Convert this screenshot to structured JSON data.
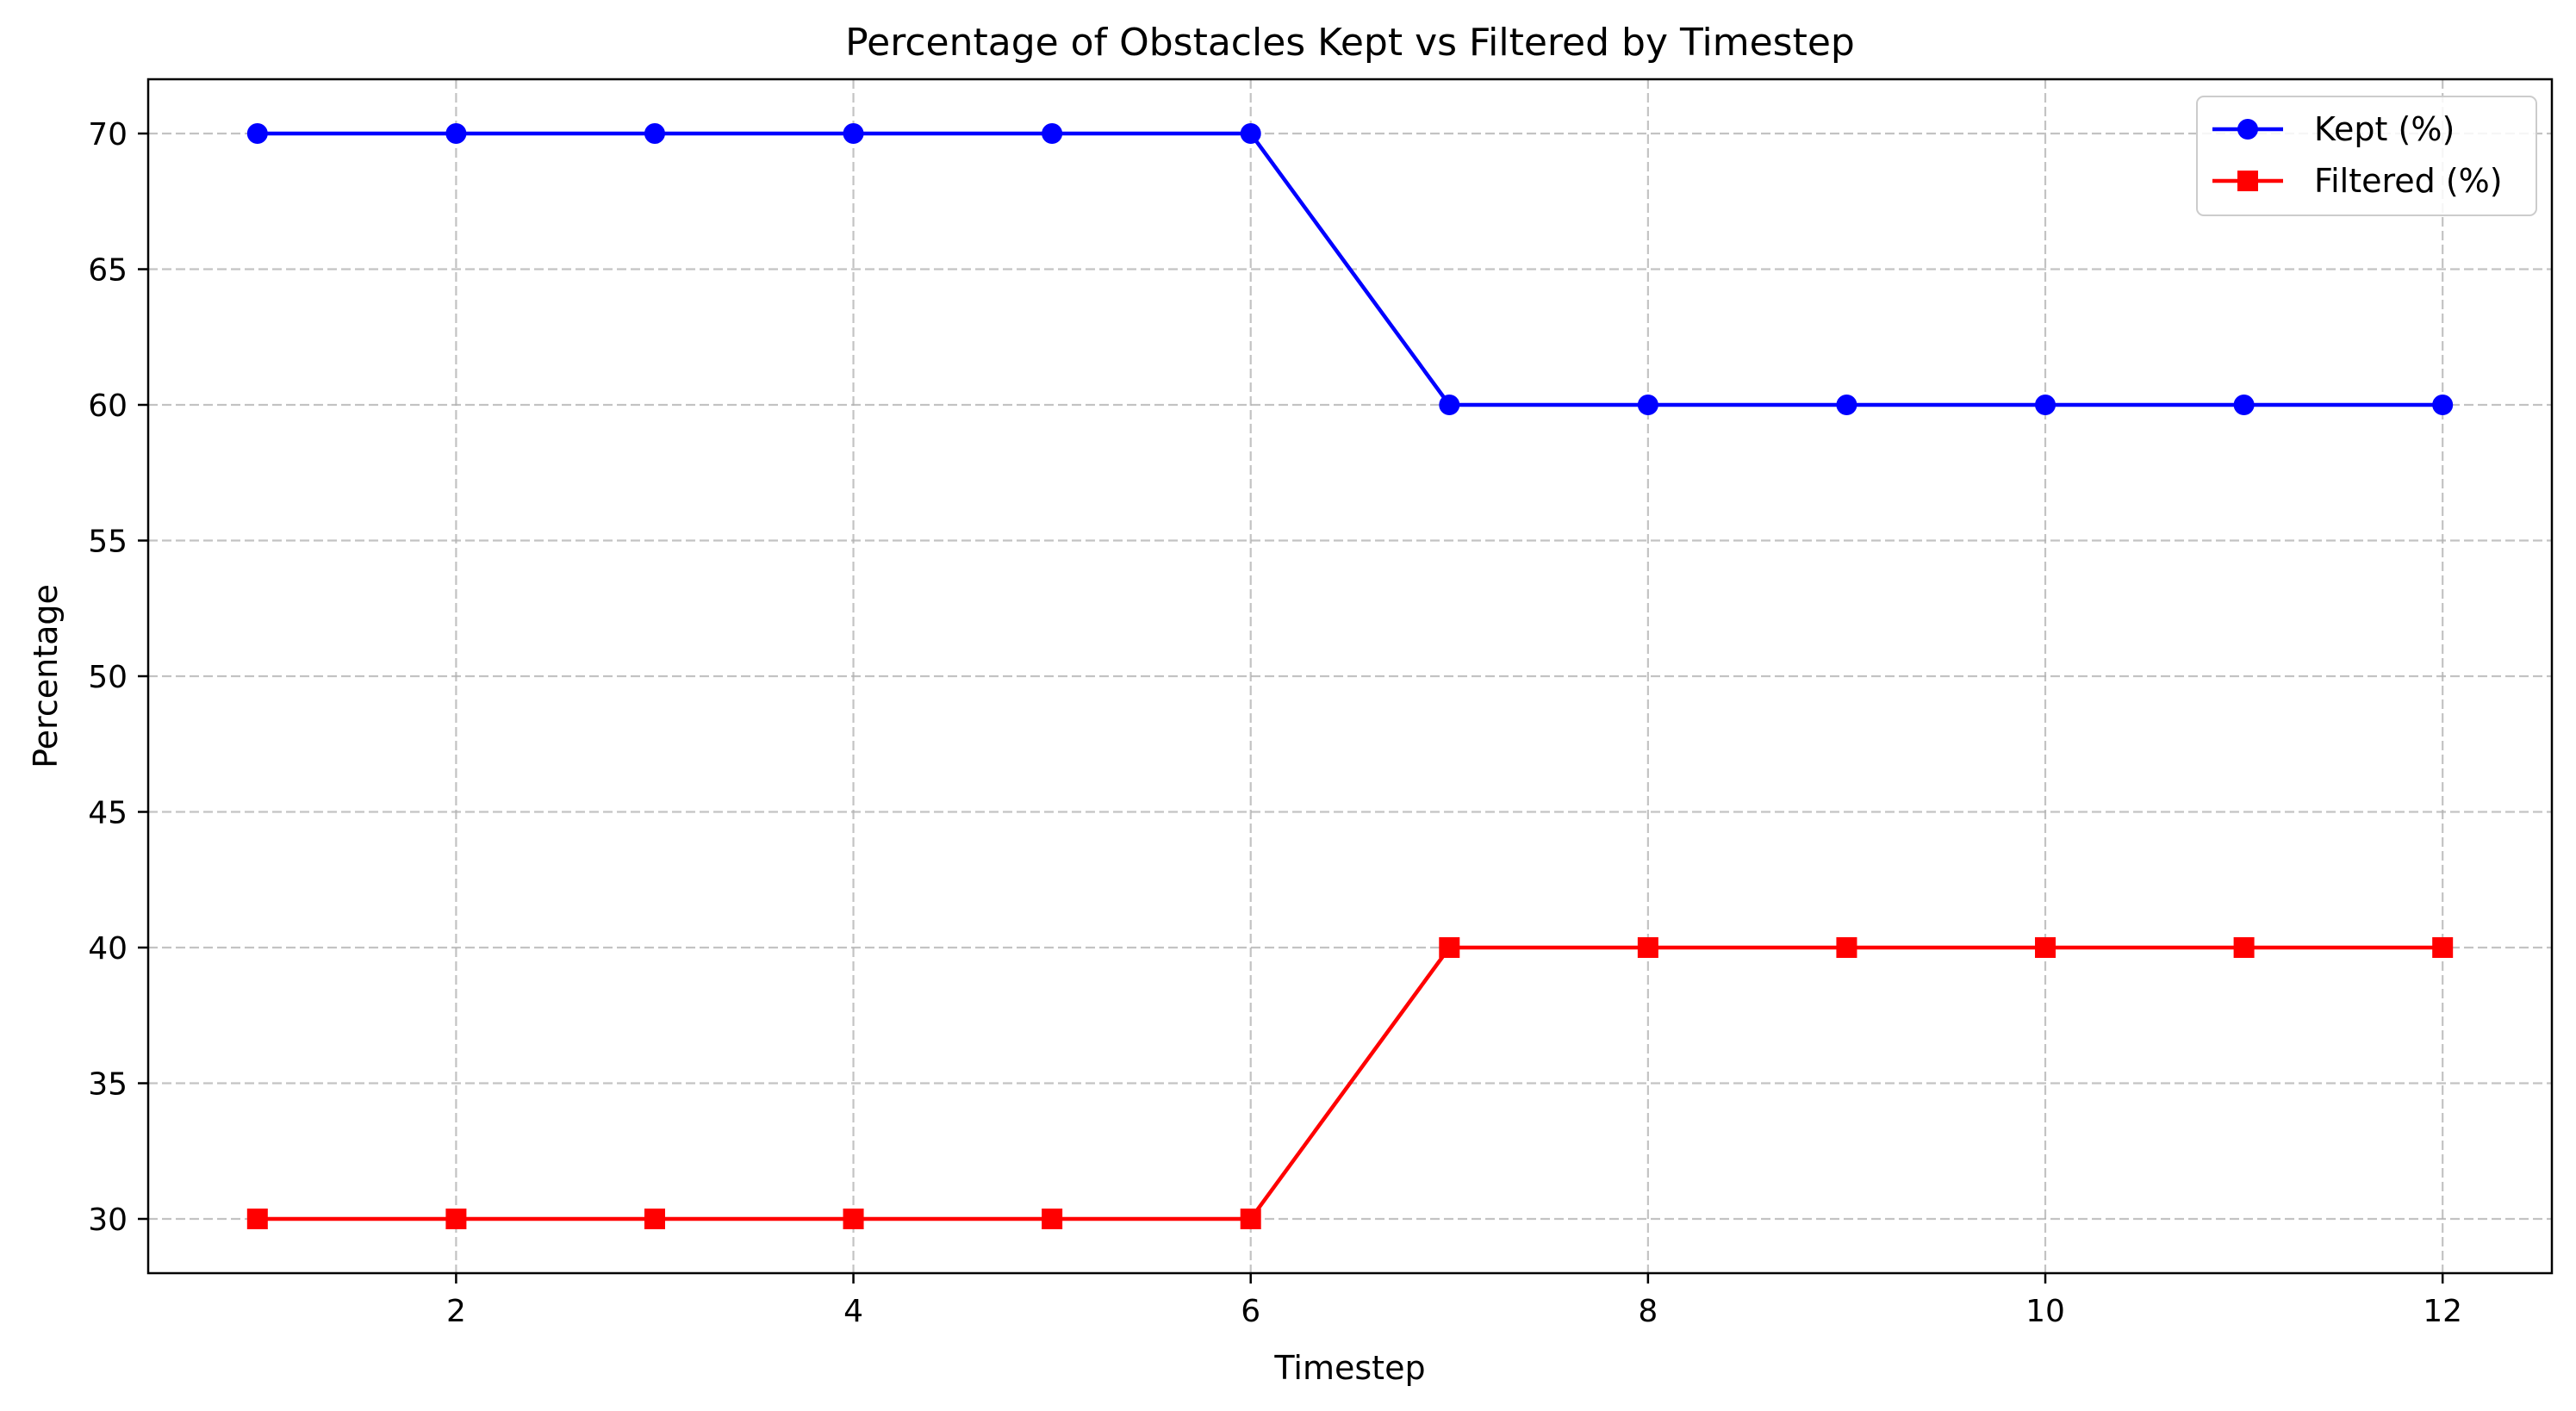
{
  "chart_data": {
    "type": "line",
    "title": "Percentage of Obstacles Kept vs Filtered by Timestep",
    "xlabel": "Timestep",
    "ylabel": "Percentage",
    "x": [
      1,
      2,
      3,
      4,
      5,
      6,
      7,
      8,
      9,
      10,
      11,
      12
    ],
    "xlim": [
      0.45,
      12.55
    ],
    "ylim": [
      28,
      72
    ],
    "xticks": [
      2,
      4,
      6,
      8,
      10,
      12
    ],
    "yticks": [
      30,
      35,
      40,
      45,
      50,
      55,
      60,
      65,
      70
    ],
    "grid": true,
    "legend_position": "top-right",
    "series": [
      {
        "name": "Kept (%)",
        "marker": "circle",
        "color": "#0000ff",
        "values": [
          70,
          70,
          70,
          70,
          70,
          70,
          60,
          60,
          60,
          60,
          60,
          60
        ]
      },
      {
        "name": "Filtered (%)",
        "marker": "square",
        "color": "#ff0000",
        "values": [
          30,
          30,
          30,
          30,
          30,
          30,
          40,
          40,
          40,
          40,
          40,
          40
        ]
      }
    ]
  }
}
